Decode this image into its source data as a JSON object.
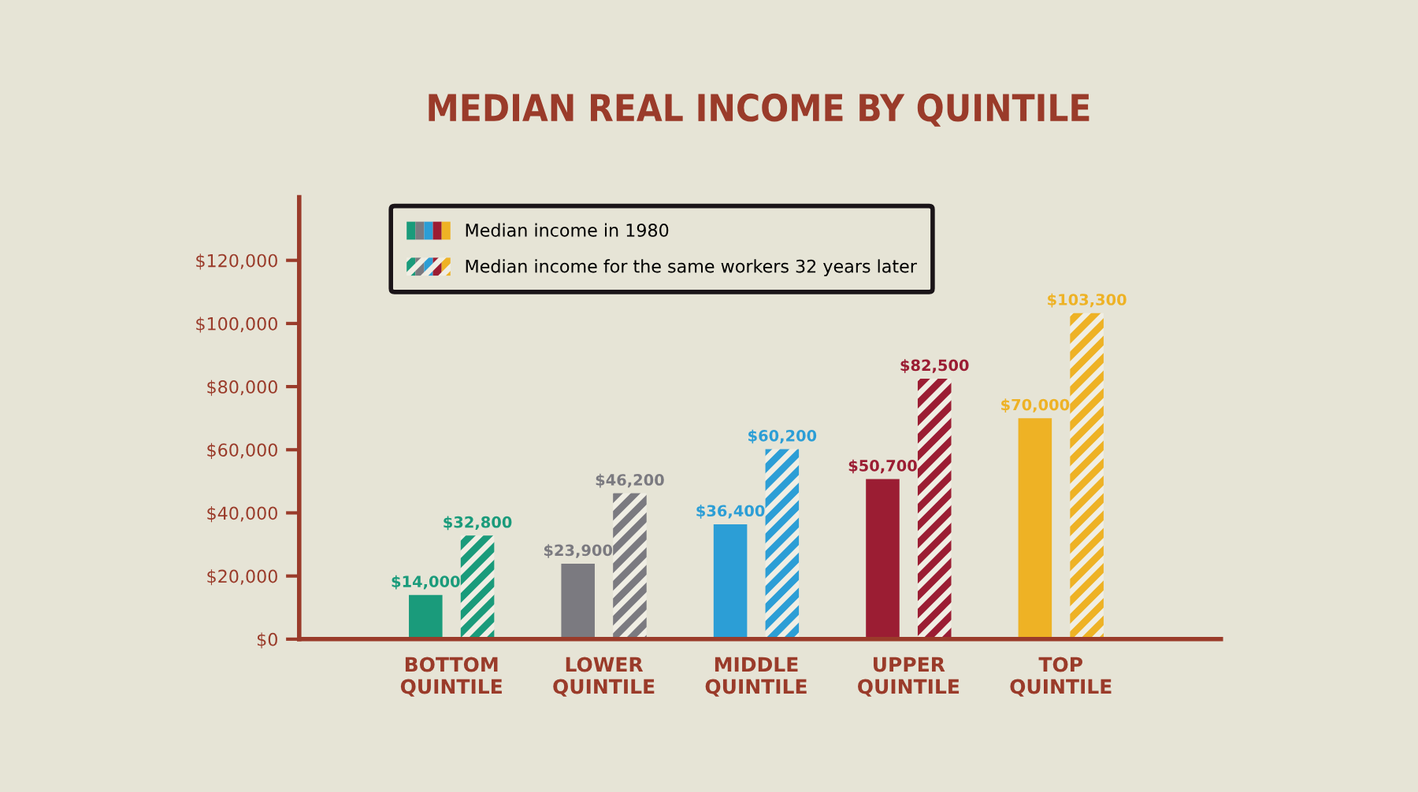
{
  "chart_data": {
    "type": "bar",
    "title": "MEDIAN REAL INCOME BY QUINTILE",
    "categories": [
      "BOTTOM\nQUINTILE",
      "LOWER\nQUINTILE",
      "MIDDLE\nQUINTILE",
      "UPPER\nQUINTILE",
      "TOP\nQUINTILE"
    ],
    "series": [
      {
        "name": "Median income in 1980",
        "colors": [
          "#1a9b7b",
          "#7b7a80",
          "#2c9ed6",
          "#9b1d33",
          "#eeb225"
        ],
        "values": [
          14000,
          23900,
          36400,
          50700,
          70000
        ],
        "value_labels": [
          "$14,000",
          "$23,900",
          "$36,400",
          "$50,700",
          "$70,000"
        ]
      },
      {
        "name": "Median income for the same workers 32 years later",
        "colors": [
          "#1a9b7b",
          "#7b7a80",
          "#2c9ed6",
          "#9b1d33",
          "#eeb225"
        ],
        "values": [
          32800,
          46200,
          60200,
          82500,
          103300
        ],
        "value_labels": [
          "$32,800",
          "$46,200",
          "$60,200",
          "$82,500",
          "$103,300"
        ]
      }
    ],
    "ylim": [
      0,
      140000
    ],
    "yticks": [
      {
        "value": 0,
        "label": "$0"
      },
      {
        "value": 20000,
        "label": "$20,000"
      },
      {
        "value": 40000,
        "label": "$40,000"
      },
      {
        "value": 60000,
        "label": "$60,000"
      },
      {
        "value": 80000,
        "label": "$80,000"
      },
      {
        "value": 100000,
        "label": "$100,000"
      },
      {
        "value": 120000,
        "label": "$120,000"
      }
    ],
    "grid": false,
    "legend": "top left"
  }
}
